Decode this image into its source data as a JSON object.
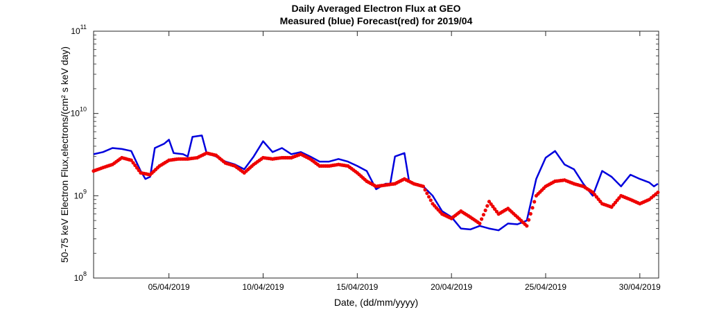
{
  "chart_data": {
    "type": "line",
    "title": "Daily Averaged Electron Flux at GEO",
    "subtitle": "Measured (blue) Forecast(red) for 2019/04",
    "xlabel": "Date, (dd/mm/yyyy)",
    "ylabel": "50-75 keV Electron Flux,electrons/(cm² s keV day)",
    "x_range": [
      "01/04/2019",
      "01/05/2019"
    ],
    "y_range": [
      100000000.0,
      100000000000.0
    ],
    "y_scale": "log",
    "x_ticks": [
      "05/04/2019",
      "10/04/2019",
      "15/04/2019",
      "20/04/2019",
      "25/04/2019",
      "30/04/2019"
    ],
    "y_ticks": [
      {
        "base": "10",
        "exp": "8"
      },
      {
        "base": "10",
        "exp": "9"
      },
      {
        "base": "10",
        "exp": "10"
      },
      {
        "base": "10",
        "exp": "11"
      }
    ],
    "grid": false,
    "series": [
      {
        "color": "#0000dd",
        "style": "line",
        "points": [
          [
            "01/04/2019 00:00",
            3200000000.0
          ],
          [
            "01/04/2019 12:00",
            3400000000.0
          ],
          [
            "02/04/2019 00:00",
            3800000000.0
          ],
          [
            "02/04/2019 12:00",
            3700000000.0
          ],
          [
            "03/04/2019 00:00",
            3500000000.0
          ],
          [
            "03/04/2019 12:00",
            2000000000.0
          ],
          [
            "03/04/2019 18:00",
            1600000000.0
          ],
          [
            "04/04/2019 00:00",
            1700000000.0
          ],
          [
            "04/04/2019 06:00",
            3800000000.0
          ],
          [
            "04/04/2019 18:00",
            4300000000.0
          ],
          [
            "05/04/2019 00:00",
            4800000000.0
          ],
          [
            "05/04/2019 06:00",
            3300000000.0
          ],
          [
            "05/04/2019 18:00",
            3200000000.0
          ],
          [
            "06/04/2019 00:00",
            3000000000.0
          ],
          [
            "06/04/2019 06:00",
            5200000000.0
          ],
          [
            "06/04/2019 18:00",
            5400000000.0
          ],
          [
            "07/04/2019 00:00",
            3300000000.0
          ],
          [
            "07/04/2019 12:00",
            3000000000.0
          ],
          [
            "08/04/2019 00:00",
            2600000000.0
          ],
          [
            "08/04/2019 12:00",
            2400000000.0
          ],
          [
            "09/04/2019 00:00",
            2100000000.0
          ],
          [
            "09/04/2019 12:00",
            3000000000.0
          ],
          [
            "10/04/2019 00:00",
            4600000000.0
          ],
          [
            "10/04/2019 12:00",
            3400000000.0
          ],
          [
            "11/04/2019 00:00",
            3800000000.0
          ],
          [
            "11/04/2019 12:00",
            3200000000.0
          ],
          [
            "12/04/2019 00:00",
            3400000000.0
          ],
          [
            "12/04/2019 12:00",
            3000000000.0
          ],
          [
            "13/04/2019 00:00",
            2600000000.0
          ],
          [
            "13/04/2019 12:00",
            2600000000.0
          ],
          [
            "14/04/2019 00:00",
            2800000000.0
          ],
          [
            "14/04/2019 12:00",
            2600000000.0
          ],
          [
            "15/04/2019 00:00",
            2300000000.0
          ],
          [
            "15/04/2019 12:00",
            2000000000.0
          ],
          [
            "16/04/2019 00:00",
            1200000000.0
          ],
          [
            "16/04/2019 12:00",
            1400000000.0
          ],
          [
            "16/04/2019 18:00",
            1400000000.0
          ],
          [
            "17/04/2019 00:00",
            3000000000.0
          ],
          [
            "17/04/2019 12:00",
            3300000000.0
          ],
          [
            "17/04/2019 18:00",
            1500000000.0
          ],
          [
            "18/04/2019 00:00",
            1400000000.0
          ],
          [
            "18/04/2019 12:00",
            1300000000.0
          ],
          [
            "19/04/2019 00:00",
            1000000000.0
          ],
          [
            "19/04/2019 12:00",
            650000000.0
          ],
          [
            "20/04/2019 00:00",
            550000000.0
          ],
          [
            "20/04/2019 12:00",
            400000000.0
          ],
          [
            "21/04/2019 00:00",
            390000000.0
          ],
          [
            "21/04/2019 12:00",
            430000000.0
          ],
          [
            "22/04/2019 00:00",
            400000000.0
          ],
          [
            "22/04/2019 12:00",
            380000000.0
          ],
          [
            "23/04/2019 00:00",
            460000000.0
          ],
          [
            "23/04/2019 12:00",
            450000000.0
          ],
          [
            "24/04/2019 00:00",
            500000000.0
          ],
          [
            "24/04/2019 12:00",
            1600000000.0
          ],
          [
            "25/04/2019 00:00",
            2900000000.0
          ],
          [
            "25/04/2019 12:00",
            3500000000.0
          ],
          [
            "26/04/2019 00:00",
            2400000000.0
          ],
          [
            "26/04/2019 12:00",
            2100000000.0
          ],
          [
            "27/04/2019 00:00",
            1400000000.0
          ],
          [
            "27/04/2019 12:00",
            1000000000.0
          ],
          [
            "28/04/2019 00:00",
            2000000000.0
          ],
          [
            "28/04/2019 12:00",
            1700000000.0
          ],
          [
            "29/04/2019 00:00",
            1300000000.0
          ],
          [
            "29/04/2019 12:00",
            1800000000.0
          ],
          [
            "30/04/2019 00:00",
            1600000000.0
          ],
          [
            "30/04/2019 12:00",
            1450000000.0
          ],
          [
            "30/04/2019 18:00",
            1300000000.0
          ],
          [
            "30/04/2019 23:00",
            1400000000.0
          ]
        ]
      },
      {
        "color": "#ee0000",
        "style": "markers",
        "points": [
          [
            "01/04/2019 00:00",
            2000000000.0
          ],
          [
            "01/04/2019 12:00",
            2200000000.0
          ],
          [
            "02/04/2019 00:00",
            2400000000.0
          ],
          [
            "02/04/2019 12:00",
            2900000000.0
          ],
          [
            "03/04/2019 00:00",
            2700000000.0
          ],
          [
            "03/04/2019 12:00",
            1900000000.0
          ],
          [
            "04/04/2019 00:00",
            1800000000.0
          ],
          [
            "04/04/2019 12:00",
            2300000000.0
          ],
          [
            "05/04/2019 00:00",
            2700000000.0
          ],
          [
            "05/04/2019 12:00",
            2800000000.0
          ],
          [
            "06/04/2019 00:00",
            2800000000.0
          ],
          [
            "06/04/2019 12:00",
            2900000000.0
          ],
          [
            "07/04/2019 00:00",
            3300000000.0
          ],
          [
            "07/04/2019 12:00",
            3100000000.0
          ],
          [
            "08/04/2019 00:00",
            2500000000.0
          ],
          [
            "08/04/2019 12:00",
            2300000000.0
          ],
          [
            "09/04/2019 00:00",
            1900000000.0
          ],
          [
            "09/04/2019 12:00",
            2400000000.0
          ],
          [
            "10/04/2019 00:00",
            2900000000.0
          ],
          [
            "10/04/2019 12:00",
            2800000000.0
          ],
          [
            "11/04/2019 00:00",
            2900000000.0
          ],
          [
            "11/04/2019 12:00",
            2900000000.0
          ],
          [
            "12/04/2019 00:00",
            3200000000.0
          ],
          [
            "12/04/2019 12:00",
            2800000000.0
          ],
          [
            "13/04/2019 00:00",
            2300000000.0
          ],
          [
            "13/04/2019 12:00",
            2300000000.0
          ],
          [
            "14/04/2019 00:00",
            2400000000.0
          ],
          [
            "14/04/2019 12:00",
            2300000000.0
          ],
          [
            "15/04/2019 00:00",
            1900000000.0
          ],
          [
            "15/04/2019 12:00",
            1500000000.0
          ],
          [
            "16/04/2019 00:00",
            1300000000.0
          ],
          [
            "16/04/2019 12:00",
            1350000000.0
          ],
          [
            "17/04/2019 00:00",
            1400000000.0
          ],
          [
            "17/04/2019 12:00",
            1600000000.0
          ],
          [
            "18/04/2019 00:00",
            1400000000.0
          ],
          [
            "18/04/2019 12:00",
            1300000000.0
          ],
          [
            "19/04/2019 00:00",
            800000000.0
          ],
          [
            "19/04/2019 12:00",
            600000000.0
          ],
          [
            "20/04/2019 00:00",
            530000000.0
          ],
          [
            "20/04/2019 12:00",
            650000000.0
          ],
          [
            "21/04/2019 00:00",
            550000000.0
          ],
          [
            "21/04/2019 12:00",
            460000000.0
          ],
          [
            "22/04/2019 00:00",
            850000000.0
          ],
          [
            "22/04/2019 12:00",
            600000000.0
          ],
          [
            "23/04/2019 00:00",
            700000000.0
          ],
          [
            "23/04/2019 12:00",
            550000000.0
          ],
          [
            "24/04/2019 00:00",
            430000000.0
          ],
          [
            "24/04/2019 12:00",
            1000000000.0
          ],
          [
            "25/04/2019 00:00",
            1300000000.0
          ],
          [
            "25/04/2019 12:00",
            1500000000.0
          ],
          [
            "26/04/2019 00:00",
            1550000000.0
          ],
          [
            "26/04/2019 12:00",
            1400000000.0
          ],
          [
            "27/04/2019 00:00",
            1300000000.0
          ],
          [
            "27/04/2019 12:00",
            1100000000.0
          ],
          [
            "28/04/2019 00:00",
            800000000.0
          ],
          [
            "28/04/2019 12:00",
            730000000.0
          ],
          [
            "29/04/2019 00:00",
            1000000000.0
          ],
          [
            "29/04/2019 12:00",
            900000000.0
          ],
          [
            "30/04/2019 00:00",
            800000000.0
          ],
          [
            "30/04/2019 12:00",
            900000000.0
          ],
          [
            "30/04/2019 23:00",
            1100000000.0
          ]
        ]
      }
    ]
  }
}
